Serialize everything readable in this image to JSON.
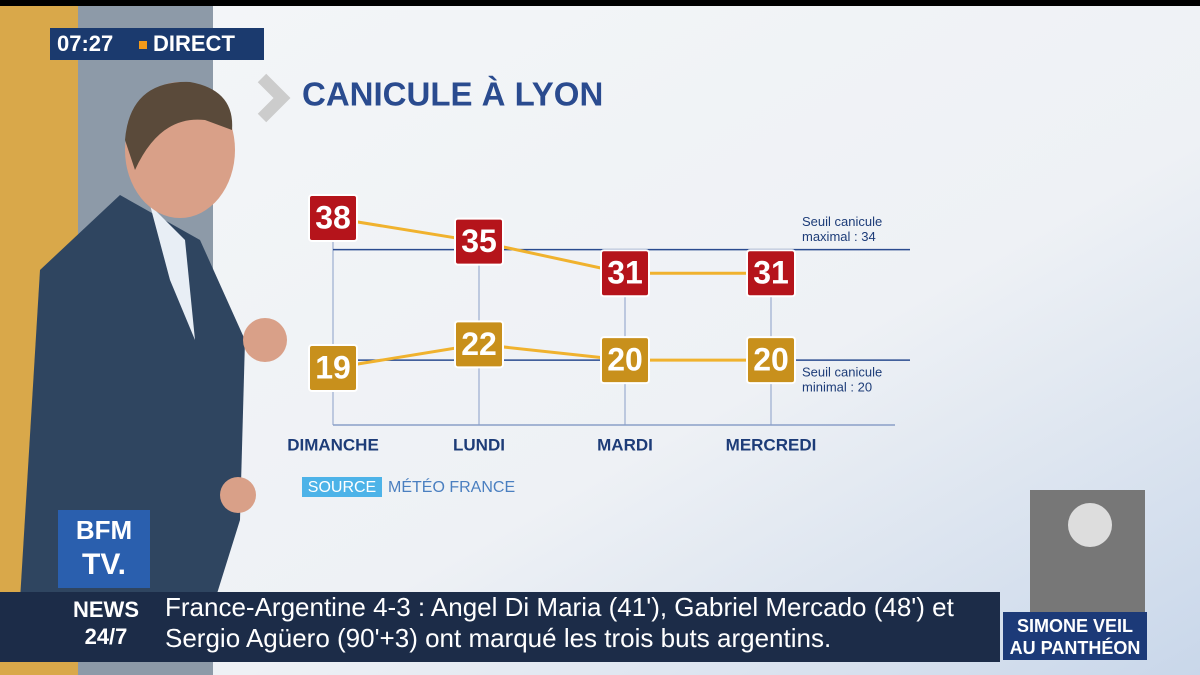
{
  "header": {
    "time": "07:27",
    "live": "DIRECT"
  },
  "chart_data": {
    "type": "line",
    "title": "CANICULE À LYON",
    "categories": [
      "DIMANCHE",
      "LUNDI",
      "MARDI",
      "MERCREDI"
    ],
    "series": [
      {
        "color": "#f0b22e",
        "badge_color": "#b5141b",
        "values": [
          38,
          35,
          31,
          31
        ]
      },
      {
        "color": "#f0b22e",
        "badge_color": "#c8901c",
        "values": [
          19,
          22,
          20,
          20
        ]
      }
    ],
    "annotations": [
      {
        "lines": [
          "Seuil canicule",
          "maximal : 34"
        ],
        "value": 34
      },
      {
        "lines": [
          "Seuil canicule",
          "minimal : 20"
        ],
        "value": 20
      }
    ],
    "source": {
      "label": "SOURCE",
      "text": "MÉTÉO FRANCE"
    }
  },
  "logo": {
    "top": "BFM",
    "bottom": "TV."
  },
  "ticker": {
    "brand": [
      "NEWS",
      "24/7"
    ],
    "lines": [
      "France-Argentine 4-3 : Angel Di Maria (41'), Gabriel Mercado (48') et",
      "Sergio Agüero (90'+3) ont marqué les trois buts argentins."
    ]
  },
  "promo": {
    "lines": [
      "SIMONE VEIL",
      "AU PANTHÉON"
    ]
  }
}
